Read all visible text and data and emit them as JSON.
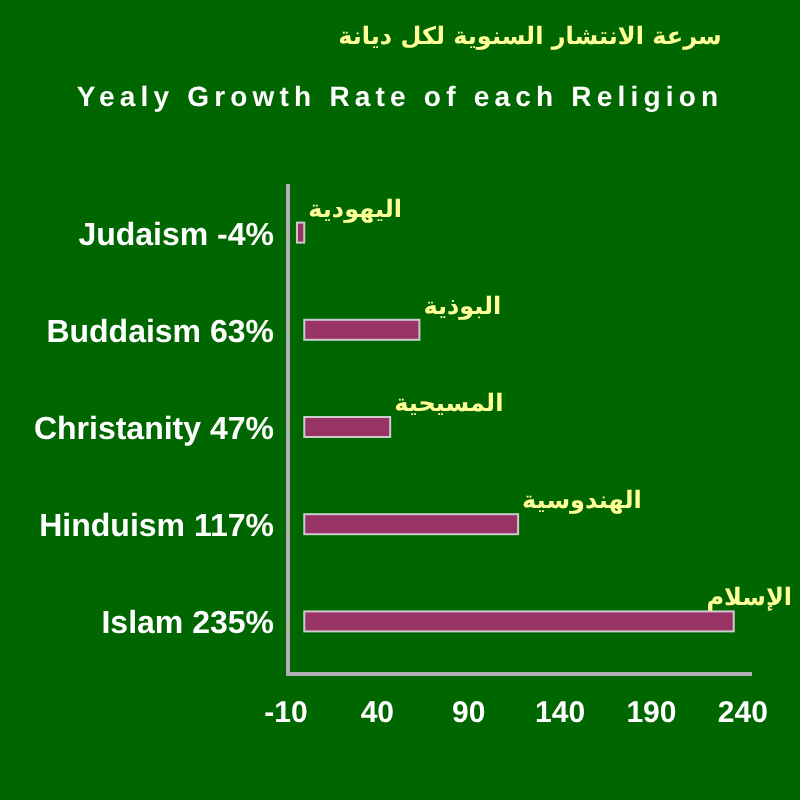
{
  "chart_data": {
    "type": "bar",
    "orientation": "horizontal",
    "title": "سرعة الانتشار السنوية لكل ديانة",
    "subtitle": "Yealy Growth Rate of each Religion",
    "categories": [
      "Judaism -4%",
      "Buddaism 63%",
      "Christanity 47%",
      "Hinduism 117%",
      "Islam 235%"
    ],
    "values": [
      -4,
      63,
      47,
      117,
      235
    ],
    "color": "#993366",
    "xlim": [
      -10,
      245
    ],
    "xticks": [
      -10,
      40,
      90,
      140,
      190,
      240
    ],
    "annotations": [
      {
        "text": "اليهودية",
        "x": -4,
        "y": "Judaism -4%"
      },
      {
        "text": "البوذية",
        "x": 63,
        "y": "Buddaism 63%"
      },
      {
        "text": "المسيحية",
        "x": 47,
        "y": "Christanity 47%"
      },
      {
        "text": "الهندوسية",
        "x": 117,
        "y": "Hinduism 117%"
      },
      {
        "text": "الإسلام",
        "x": 235,
        "y": "Islam 235%"
      }
    ],
    "grid": false
  }
}
